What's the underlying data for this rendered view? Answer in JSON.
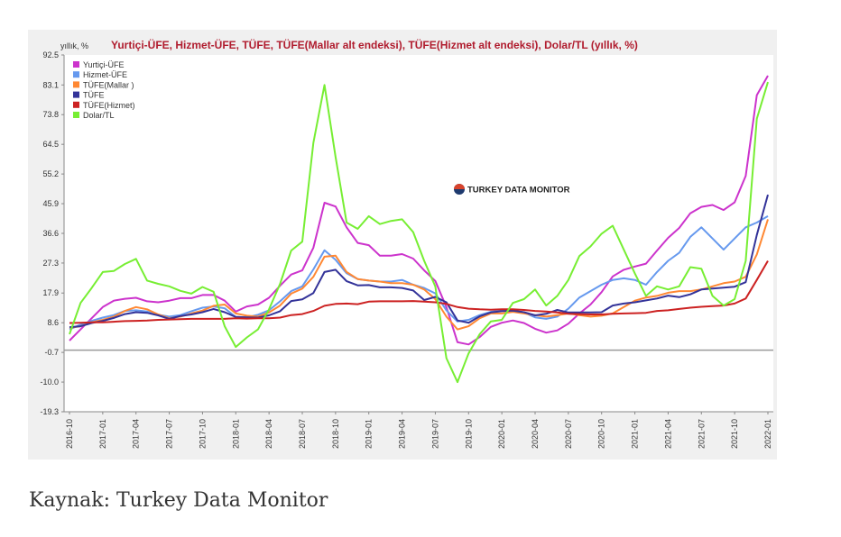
{
  "chart_data": {
    "type": "line",
    "title": "Yurtiçi-ÜFE, Hizmet-ÜFE, TÜFE, TÜFE(Mallar alt endeksi), TÜFE(Hizmet alt endeksi), Dolar/TL (yıllık, %)",
    "ylabel": "yıllık, %",
    "xlabel": "",
    "ylim": [
      -19.3,
      92.5
    ],
    "yticks": [
      "92.5",
      "83.1",
      "73.8",
      "64.5",
      "55.2",
      "45.9",
      "36.6",
      "27.3",
      "17.9",
      "8.6",
      "-0.7",
      "-10.0",
      "-19.3"
    ],
    "x": [
      "2016-10",
      "2016-11",
      "2016-12",
      "2017-01",
      "2017-02",
      "2017-03",
      "2017-04",
      "2017-05",
      "2017-06",
      "2017-07",
      "2017-08",
      "2017-09",
      "2017-10",
      "2017-11",
      "2017-12",
      "2018-01",
      "2018-02",
      "2018-03",
      "2018-04",
      "2018-05",
      "2018-06",
      "2018-07",
      "2018-08",
      "2018-09",
      "2018-10",
      "2018-11",
      "2018-12",
      "2019-01",
      "2019-02",
      "2019-03",
      "2019-04",
      "2019-05",
      "2019-06",
      "2019-07",
      "2019-08",
      "2019-09",
      "2019-10",
      "2019-11",
      "2019-12",
      "2020-01",
      "2020-02",
      "2020-03",
      "2020-04",
      "2020-05",
      "2020-06",
      "2020-07",
      "2020-08",
      "2020-09",
      "2020-10",
      "2020-11",
      "2020-12",
      "2021-01",
      "2021-02",
      "2021-03",
      "2021-04",
      "2021-05",
      "2021-06",
      "2021-07",
      "2021-08",
      "2021-09",
      "2021-10",
      "2021-11",
      "2021-12",
      "2022-01"
    ],
    "xticks": [
      "2016-10",
      "2017-01",
      "2017-04",
      "2017-07",
      "2017-10",
      "2018-01",
      "2018-04",
      "2018-07",
      "2018-10",
      "2019-01",
      "2019-04",
      "2019-07",
      "2019-10",
      "2020-01",
      "2020-04",
      "2020-07",
      "2020-10",
      "2021-01",
      "2021-04",
      "2021-07",
      "2021-10",
      "2022-01"
    ],
    "legend_position": "top-left",
    "grid": false,
    "series": [
      {
        "name": "Yurtiçi-ÜFE",
        "color": "#cc33cc",
        "values": [
          3.0,
          6.5,
          10.0,
          13.5,
          15.5,
          16.1,
          16.4,
          15.3,
          15.0,
          15.5,
          16.3,
          16.3,
          17.3,
          17.3,
          15.5,
          12.1,
          13.7,
          14.3,
          16.4,
          20.2,
          23.7,
          25.0,
          32.1,
          46.2,
          45.0,
          38.5,
          33.6,
          32.9,
          29.6,
          29.6,
          30.1,
          28.7,
          25.0,
          21.7,
          13.5,
          2.5,
          1.8,
          4.1,
          7.3,
          8.6,
          9.3,
          8.5,
          6.7,
          5.5,
          6.2,
          8.3,
          11.5,
          14.3,
          18.2,
          23.1,
          25.2,
          26.2,
          27.1,
          31.2,
          35.2,
          38.3,
          42.9,
          44.9,
          45.5,
          43.9,
          46.3,
          54.6,
          79.9,
          86.0
        ]
      },
      {
        "name": "Hizmet-ÜFE",
        "color": "#6699ee",
        "values": [
          6.5,
          8.0,
          9.2,
          10.2,
          11.0,
          12.3,
          12.5,
          12.1,
          11.1,
          10.5,
          11.0,
          12.2,
          13.3,
          13.7,
          13.1,
          10.4,
          10.3,
          11.1,
          12.5,
          15.3,
          18.5,
          20.0,
          25.3,
          31.3,
          28.3,
          24.1,
          22.3,
          21.8,
          21.5,
          21.5,
          22.0,
          20.5,
          19.5,
          17.8,
          12.5,
          9.0,
          9.5,
          11.0,
          12.0,
          12.5,
          12.5,
          11.8,
          10.3,
          9.8,
          10.5,
          13.0,
          16.5,
          18.5,
          20.5,
          22.0,
          22.5,
          22.0,
          20.5,
          24.5,
          28.0,
          30.5,
          35.5,
          38.5,
          35.0,
          31.5,
          35.0,
          38.5,
          40.0,
          42.0
        ]
      },
      {
        "name": "TÜFE(Mallar )",
        "color": "#ff8833",
        "values": [
          7.0,
          7.5,
          8.7,
          9.5,
          10.5,
          12.3,
          13.5,
          12.8,
          11.2,
          10.0,
          10.5,
          11.5,
          12.4,
          13.9,
          14.3,
          11.5,
          10.8,
          10.5,
          11.8,
          14.0,
          17.7,
          19.3,
          23.0,
          29.3,
          29.6,
          24.5,
          22.3,
          21.8,
          21.5,
          21.0,
          21.0,
          20.5,
          19.0,
          16.0,
          10.5,
          6.5,
          7.5,
          10.0,
          11.5,
          11.5,
          12.0,
          11.5,
          11.0,
          10.5,
          11.0,
          11.5,
          11.0,
          10.5,
          10.8,
          11.5,
          13.5,
          15.5,
          16.5,
          17.0,
          18.0,
          18.5,
          18.5,
          19.0,
          20.0,
          21.0,
          21.5,
          23.0,
          30.0,
          41.0
        ]
      },
      {
        "name": "TÜFE",
        "color": "#333399",
        "values": [
          7.2,
          7.5,
          8.5,
          9.2,
          10.1,
          11.3,
          11.9,
          11.7,
          10.9,
          9.8,
          10.7,
          11.2,
          11.9,
          12.9,
          11.9,
          10.4,
          10.3,
          10.2,
          10.9,
          12.2,
          15.4,
          15.9,
          17.9,
          24.5,
          25.2,
          21.6,
          20.3,
          20.4,
          19.7,
          19.7,
          19.5,
          18.7,
          15.7,
          16.7,
          15.0,
          9.3,
          8.6,
          10.6,
          11.8,
          12.2,
          12.4,
          11.9,
          10.9,
          11.4,
          12.6,
          11.8,
          11.8,
          11.8,
          11.9,
          14.0,
          14.6,
          15.0,
          15.6,
          16.2,
          17.1,
          16.6,
          17.5,
          19.0,
          19.3,
          19.6,
          19.9,
          21.3,
          36.1,
          48.7
        ]
      },
      {
        "name": "TÜFE(Hizmet)",
        "color": "#cc2222",
        "values": [
          8.5,
          8.6,
          8.7,
          8.7,
          8.9,
          9.1,
          9.2,
          9.3,
          9.5,
          9.6,
          9.7,
          9.8,
          9.8,
          9.8,
          9.8,
          10.0,
          9.9,
          10.0,
          10.0,
          10.2,
          11.0,
          11.3,
          12.3,
          13.9,
          14.5,
          14.6,
          14.4,
          15.2,
          15.3,
          15.3,
          15.3,
          15.4,
          15.2,
          15.0,
          14.5,
          13.5,
          13.0,
          12.8,
          12.7,
          12.8,
          12.8,
          12.6,
          12.3,
          12.1,
          11.8,
          11.4,
          11.3,
          11.2,
          11.2,
          11.4,
          11.5,
          11.6,
          11.7,
          12.3,
          12.5,
          12.9,
          13.3,
          13.6,
          13.8,
          14.0,
          14.6,
          16.2,
          22.0,
          28.0
        ]
      },
      {
        "name": "Dolar/TL",
        "color": "#77ee33",
        "values": [
          5.0,
          14.8,
          19.5,
          24.5,
          24.8,
          27.0,
          28.6,
          21.8,
          20.8,
          20.0,
          18.6,
          17.7,
          19.8,
          18.3,
          7.5,
          1.0,
          4.0,
          6.5,
          12.8,
          20.8,
          31.2,
          34.0,
          65.0,
          83.1,
          60.5,
          40.0,
          38.0,
          42.0,
          39.5,
          40.5,
          41.0,
          37.0,
          28.0,
          20.0,
          -2.5,
          -10.0,
          -1.0,
          5.0,
          9.0,
          9.5,
          14.8,
          16.0,
          19.0,
          14.0,
          17.0,
          22.0,
          29.5,
          32.5,
          36.5,
          39.0,
          31.5,
          24.0,
          17.0,
          20.0,
          19.0,
          20.0,
          26.0,
          25.5,
          17.0,
          14.0,
          16.0,
          28.0,
          72.5,
          84.0
        ]
      }
    ],
    "watermark": "TURKEY DATA MONITOR"
  },
  "caption": "Kaynak: Turkey Data Monitor"
}
